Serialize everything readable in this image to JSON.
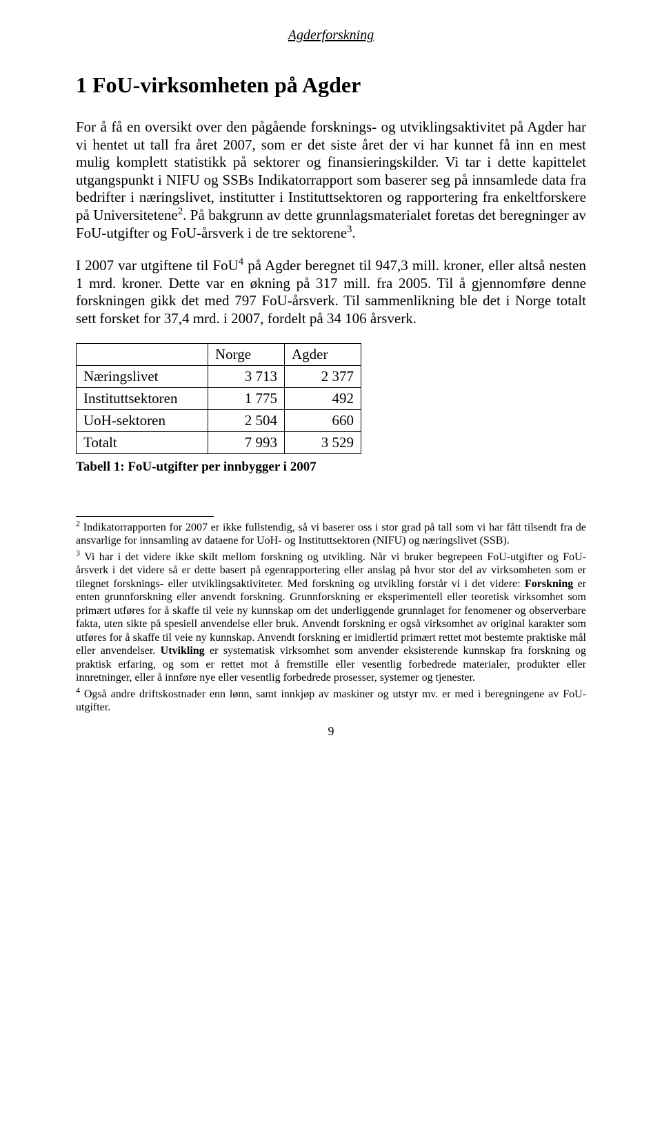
{
  "header": "Agderforskning",
  "title": "1  FoU-virksomheten på Agder",
  "para1_html": "For å få en oversikt over den pågående forsknings- og utviklingsaktivitet på Agder har vi hentet ut tall fra året 2007, som er det siste året der vi har kunnet få inn en mest mulig komplett statistikk på sektorer og finansieringskilder. Vi tar i dette kapittelet utgangspunkt i NIFU og SSBs Indikatorrapport som baserer seg på innsamlede data fra bedrifter i næringslivet, institutter i Instituttsektoren og rapportering fra enkeltforskere på Universitetene<sup>2</sup>. På bakgrunn av dette grunnlagsmaterialet foretas det beregninger av FoU-utgifter og FoU-årsverk i de tre sektorene<sup>3</sup>.",
  "para2_html": "I 2007 var utgiftene til FoU<sup>4</sup> på Agder beregnet til 947,3 mill. kroner, eller altså nesten 1 mrd. kroner. Dette var en økning på 317 mill. fra 2005. Til å gjennomføre denne forskningen gikk det med 797 FoU-årsverk. Til sammenlikning ble det i Norge totalt sett forsket for 37,4 mrd. i 2007, fordelt på 34 106 årsverk.",
  "table": {
    "columns": [
      "",
      "Norge",
      "Agder"
    ],
    "rows": [
      [
        "Næringslivet",
        "3 713",
        "2 377"
      ],
      [
        "Instituttsektoren",
        "1 775",
        "492"
      ],
      [
        "UoH-sektoren",
        "2 504",
        "660"
      ],
      [
        "Totalt",
        "7 993",
        "3 529"
      ]
    ],
    "col_align": [
      "left",
      "right",
      "right"
    ]
  },
  "caption": "Tabell 1: FoU-utgifter per innbygger i 2007",
  "footnotes": [
    "<sup>2</sup> Indikatorrapporten for 2007 er ikke fullstendig, så vi baserer oss i stor grad på tall som vi har fått tilsendt fra de ansvarlige for innsamling av dataene for UoH- og Instituttsektoren (NIFU) og næringslivet (SSB).",
    "<sup>3</sup> Vi har i det videre ikke skilt mellom forskning og utvikling. Når vi bruker begrepeen FoU-utgifter og FoU-årsverk i det videre så er dette basert på egenrapportering eller anslag på hvor stor del av virksomheten som er tilegnet forsknings- eller utviklingsaktiviteter. Med forskning og utvikling forstår vi i det videre: <b>Forskning</b> er enten grunnforskning eller anvendt forskning. Grunnforskning er eksperimentell eller teoretisk virksomhet som primært utføres for å skaffe til veie ny kunnskap om det underliggende grunnlaget for fenomener og observerbare fakta, uten sikte på spesiell anvendelse eller bruk. Anvendt forskning er også virksomhet av original karakter som utføres for å skaffe til veie ny kunnskap. Anvendt forskning er imidlertid primært rettet mot bestemte praktiske mål eller anvendelser. <b>Utvikling</b> er systematisk virksomhet som anvender eksisterende kunnskap fra forskning og praktisk erfaring, og som er rettet mot å fremstille eller vesentlig forbedrede materialer, produkter eller innretninger, eller å innføre nye eller vesentlig forbedrede prosesser, systemer og tjenester.",
    "<sup>4</sup> Også andre driftskostnader enn lønn, samt innkjøp av maskiner og utstyr mv. er med i beregningene av FoU-utgifter."
  ],
  "pagenum": "9"
}
